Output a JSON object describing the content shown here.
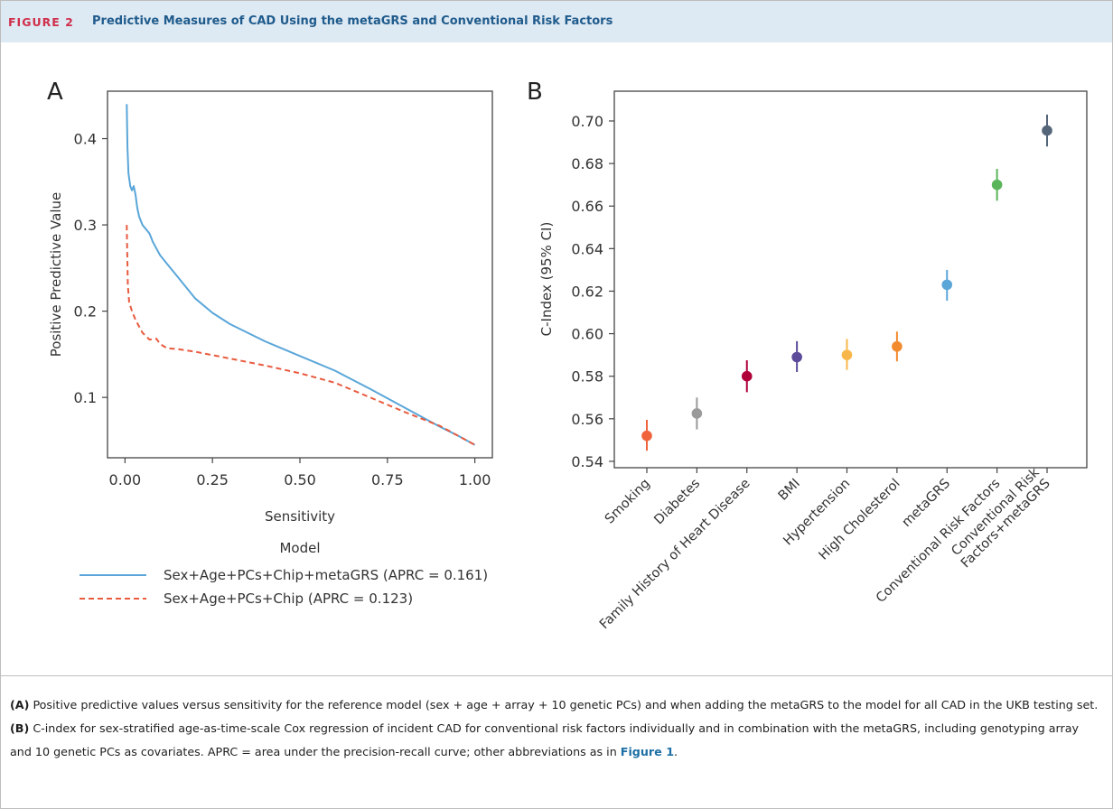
{
  "figure": {
    "label": "FIGURE 2",
    "title": "Predictive Measures of CAD Using the metaGRS and Conventional Risk Factors"
  },
  "panel_a": {
    "letter": "A",
    "xlabel": "Sensitivity",
    "ylabel": "Positive Predictive Value",
    "legend_title": "Model"
  },
  "panel_b": {
    "letter": "B",
    "ylabel": "C-Index (95% CI)"
  },
  "caption": {
    "a_label": "(A)",
    "a_text": " Positive predictive values versus sensitivity for the reference model (sex + age + array + 10 genetic PCs) and when adding the metaGRS to the model for all CAD in the UKB testing set. ",
    "b_label": "(B)",
    "b_text": " C-index for sex-stratified age-as-time-scale Cox regression of incident CAD for conventional risk factors individually and in combination with the metaGRS, including genotyping array and 10 genetic PCs as covariates. APRC = area under the precision-recall curve; other abbreviations as in ",
    "link": "Figure 1",
    "end": "."
  },
  "chart_data": [
    {
      "type": "line",
      "xlabel": "Sensitivity",
      "ylabel": "Positive Predictive Value",
      "xlim": [
        -0.05,
        1.05
      ],
      "ylim": [
        0.03,
        0.455
      ],
      "xticks": [
        0.0,
        0.25,
        0.5,
        0.75,
        1.0
      ],
      "xtick_labels": [
        "0.00",
        "0.25",
        "0.50",
        "0.75",
        "1.00"
      ],
      "yticks": [
        0.1,
        0.2,
        0.3,
        0.4
      ],
      "ytick_labels": [
        "0.1",
        "0.2",
        "0.3",
        "0.4"
      ],
      "grid": false,
      "legend_position": "below",
      "series": [
        {
          "name": "Sex+Age+PCs+Chip+metaGRS (APRC = 0.161)",
          "color": "#5aa6d9",
          "style": "solid",
          "x": [
            0.005,
            0.007,
            0.01,
            0.015,
            0.02,
            0.025,
            0.03,
            0.035,
            0.04,
            0.05,
            0.06,
            0.07,
            0.08,
            0.1,
            0.12,
            0.15,
            0.2,
            0.25,
            0.3,
            0.4,
            0.5,
            0.6,
            0.7,
            0.8,
            0.9,
            0.95,
            1.0
          ],
          "y": [
            0.44,
            0.39,
            0.36,
            0.345,
            0.34,
            0.345,
            0.335,
            0.32,
            0.31,
            0.3,
            0.295,
            0.29,
            0.28,
            0.265,
            0.255,
            0.24,
            0.215,
            0.198,
            0.185,
            0.165,
            0.148,
            0.131,
            0.11,
            0.088,
            0.066,
            0.056,
            0.045
          ]
        },
        {
          "name": "Sex+Age+PCs+Chip (APRC = 0.123)",
          "color": "#e85b3f",
          "style": "dashed",
          "x": [
            0.005,
            0.008,
            0.012,
            0.02,
            0.03,
            0.05,
            0.07,
            0.09,
            0.1,
            0.12,
            0.15,
            0.2,
            0.3,
            0.4,
            0.5,
            0.6,
            0.7,
            0.8,
            0.9,
            0.95,
            1.0
          ],
          "y": [
            0.3,
            0.23,
            0.21,
            0.2,
            0.19,
            0.175,
            0.167,
            0.168,
            0.162,
            0.157,
            0.156,
            0.153,
            0.145,
            0.137,
            0.128,
            0.117,
            0.1,
            0.083,
            0.067,
            0.056,
            0.045
          ]
        }
      ]
    },
    {
      "type": "scatter",
      "ylabel": "C-Index (95% CI)",
      "ylim": [
        0.537,
        0.714
      ],
      "yticks": [
        0.54,
        0.56,
        0.58,
        0.6,
        0.62,
        0.64,
        0.66,
        0.68,
        0.7
      ],
      "ytick_labels": [
        "0.54",
        "0.56",
        "0.58",
        "0.60",
        "0.62",
        "0.64",
        "0.66",
        "0.68",
        "0.70"
      ],
      "grid": false,
      "categories": [
        "Smoking",
        "Diabetes",
        "Family History of Heart Disease",
        "BMI",
        "Hypertension",
        "High Cholesterol",
        "metaGRS",
        "Conventional Risk Factors",
        "Conventional Risk\nFactors+metaGRS"
      ],
      "values": [
        0.552,
        0.5625,
        0.58,
        0.589,
        0.59,
        0.594,
        0.623,
        0.67,
        0.6955
      ],
      "ci_low": [
        0.545,
        0.555,
        0.5725,
        0.582,
        0.583,
        0.587,
        0.6155,
        0.6625,
        0.688
      ],
      "ci_high": [
        0.5595,
        0.57,
        0.5875,
        0.5965,
        0.5975,
        0.601,
        0.63,
        0.6775,
        0.703
      ],
      "colors": [
        "#f0643c",
        "#9a9a9a",
        "#b0003a",
        "#5b4b9a",
        "#f8b74b",
        "#f28b2e",
        "#5aa6d9",
        "#5ab55a",
        "#55667a"
      ]
    }
  ]
}
